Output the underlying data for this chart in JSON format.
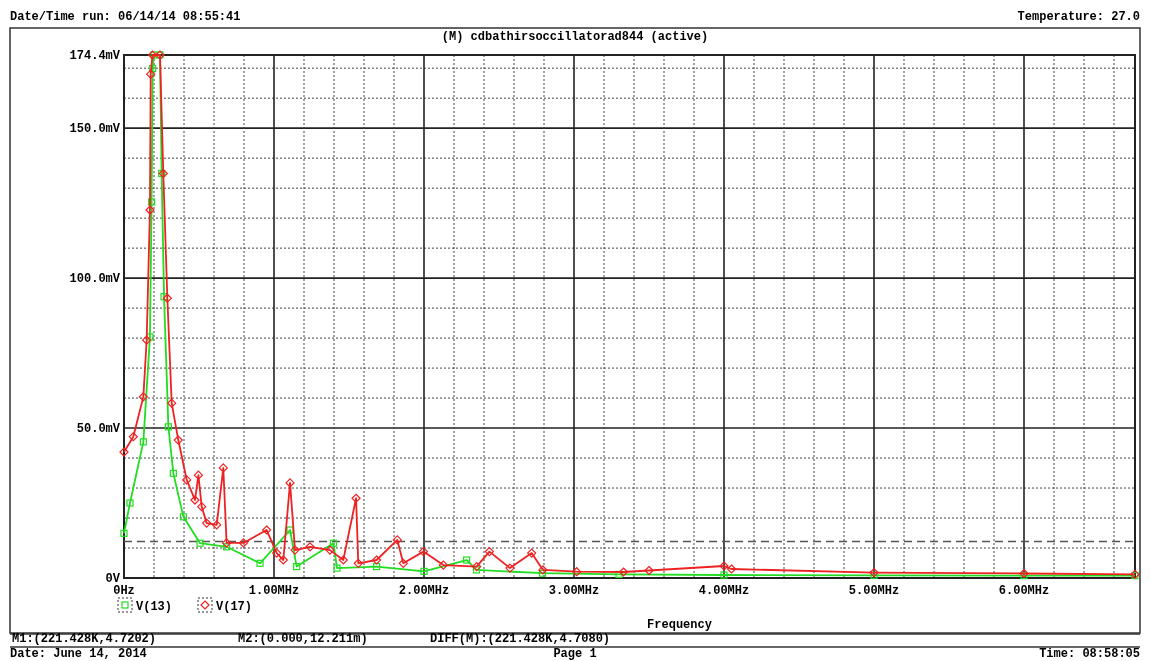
{
  "chart_data": {
    "type": "line",
    "title": "(M) cdbathirsoccillatorad844 (active)",
    "xlabel": "Frequency",
    "annotations": [
      "Date/Time run: 06/14/14 08:55:41",
      "Temperature: 27.0",
      "M1:(221.428K,4.7202)",
      "M2:(0.000,12.211m)",
      "DIFF(M):(221.428K,4.7080)",
      "Date: June 14, 2014",
      "Page 1",
      "Time: 08:58:05"
    ],
    "xlim": [
      0,
      6.74
    ],
    "ylim": [
      0,
      174.4
    ],
    "xticks": [
      {
        "value": 0,
        "label": "0Hz"
      },
      {
        "value": 0.2,
        "label": null
      },
      {
        "value": 0.4,
        "label": null
      },
      {
        "value": 0.6,
        "label": null
      },
      {
        "value": 0.8,
        "label": null
      },
      {
        "value": 1,
        "label": "1.00MHz"
      },
      {
        "value": 1.2,
        "label": null
      },
      {
        "value": 1.4,
        "label": null
      },
      {
        "value": 1.6,
        "label": null
      },
      {
        "value": 1.8,
        "label": null
      },
      {
        "value": 2,
        "label": "2.00MHz"
      },
      {
        "value": 2.2,
        "label": null
      },
      {
        "value": 2.4,
        "label": null
      },
      {
        "value": 2.6,
        "label": null
      },
      {
        "value": 2.8,
        "label": null
      },
      {
        "value": 3,
        "label": "3.00MHz"
      },
      {
        "value": 3.2,
        "label": null
      },
      {
        "value": 3.4,
        "label": null
      },
      {
        "value": 3.6,
        "label": null
      },
      {
        "value": 3.8,
        "label": null
      },
      {
        "value": 4,
        "label": "4.00MHz"
      },
      {
        "value": 4.2,
        "label": null
      },
      {
        "value": 4.4,
        "label": null
      },
      {
        "value": 4.6,
        "label": null
      },
      {
        "value": 4.8,
        "label": null
      },
      {
        "value": 5,
        "label": "5.00MHz"
      },
      {
        "value": 5.2,
        "label": null
      },
      {
        "value": 5.4,
        "label": null
      },
      {
        "value": 5.6,
        "label": null
      },
      {
        "value": 5.8,
        "label": null
      },
      {
        "value": 6,
        "label": "6.00MHz"
      },
      {
        "value": 6.2,
        "label": null
      },
      {
        "value": 6.4,
        "label": null
      },
      {
        "value": 6.6,
        "label": null
      }
    ],
    "yticks": [
      {
        "value": 0,
        "label": "0V"
      },
      {
        "value": 10,
        "label": null
      },
      {
        "value": 20,
        "label": null
      },
      {
        "value": 30,
        "label": null
      },
      {
        "value": 40,
        "label": null
      },
      {
        "value": 50,
        "label": "50.0mV"
      },
      {
        "value": 60,
        "label": null
      },
      {
        "value": 70,
        "label": null
      },
      {
        "value": 80,
        "label": null
      },
      {
        "value": 90,
        "label": null
      },
      {
        "value": 100,
        "label": "100.0mV"
      },
      {
        "value": 110,
        "label": null
      },
      {
        "value": 120,
        "label": null
      },
      {
        "value": 130,
        "label": null
      },
      {
        "value": 140,
        "label": null
      },
      {
        "value": 150,
        "label": "150.0mV"
      },
      {
        "value": 160,
        "label": null
      },
      {
        "value": 170,
        "label": null
      },
      {
        "value": 174.4,
        "label": "174.4mV"
      }
    ],
    "grid": true,
    "legend": "bottom left",
    "line_style": "solid",
    "ref_lines": [
      {
        "axis": "y",
        "value": 12.211,
        "color": "#555555",
        "line_style": "dashed"
      }
    ],
    "series": [
      {
        "name": "V(13)",
        "color": "#22dd22",
        "marker": "square",
        "x": [
          0,
          0.04,
          0.129,
          0.173,
          0.184,
          0.191,
          0.2,
          0.24,
          0.251,
          0.267,
          0.296,
          0.329,
          0.396,
          0.507,
          0.684,
          0.907,
          1.107,
          1.151,
          1.396,
          1.42,
          1.684,
          2.0,
          2.284,
          2.35,
          2.79,
          3.3,
          4.0,
          5.0,
          6.0,
          6.74
        ],
        "values": [
          14.9,
          25,
          45.4,
          80.4,
          125.4,
          169.9,
          174.4,
          174.4,
          134.9,
          93.8,
          50.4,
          34.9,
          20.4,
          11.6,
          10.4,
          4.9,
          16,
          3.8,
          11.6,
          3.3,
          3.8,
          2.2,
          6,
          2.7,
          1.6,
          1.2,
          1,
          0.9,
          0.8,
          0.8
        ]
      },
      {
        "name": "V(17)",
        "color": "#ee2222",
        "marker": "diamond",
        "x": [
          0,
          0.062,
          0.129,
          0.151,
          0.173,
          0.178,
          0.19,
          0.24,
          0.262,
          0.289,
          0.318,
          0.362,
          0.418,
          0.473,
          0.496,
          0.518,
          0.551,
          0.618,
          0.662,
          0.684,
          0.796,
          0.951,
          1.018,
          1.062,
          1.107,
          1.14,
          1.24,
          1.373,
          1.462,
          1.547,
          1.562,
          1.684,
          1.822,
          1.862,
          1.996,
          2.129,
          2.351,
          2.436,
          2.573,
          2.718,
          2.793,
          3.018,
          3.33,
          3.5,
          4.0,
          4.05,
          5.0,
          6.0,
          6.74
        ],
        "values": [
          42,
          47.1,
          60.4,
          79.3,
          122.7,
          168,
          174.4,
          174.4,
          134.9,
          93.3,
          58.3,
          46,
          32.7,
          26,
          34.3,
          23.8,
          18.3,
          17.7,
          36.7,
          11.7,
          11.7,
          16,
          8.3,
          6,
          31.7,
          9.3,
          10.4,
          9.3,
          6,
          26.6,
          4.9,
          6,
          12.7,
          4.9,
          8.8,
          4.3,
          3.8,
          8.8,
          3.3,
          8.3,
          2.7,
          2.1,
          2,
          2.5,
          4,
          3,
          1.8,
          1.5,
          1.2
        ]
      }
    ]
  }
}
